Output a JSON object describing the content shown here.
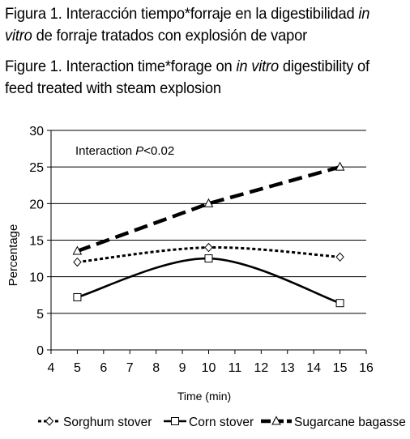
{
  "caption_es": {
    "l1_a": "Figura 1. Interacción tiempo*forraje en la digestibilidad ",
    "l1_i": "in",
    "l2_i": "vitro",
    "l2_b": " de forraje tratados con explosión de vapor"
  },
  "caption_en": {
    "l1_a": "Figure 1. Interaction time*forage on ",
    "l1_i": "in vitro",
    "l1_b": " digestibility of",
    "l2": "feed treated with steam explosion"
  },
  "chart_data": {
    "type": "line",
    "xlabel": "Time (min)",
    "ylabel": "Percentage",
    "xlim": [
      4,
      16
    ],
    "ylim": [
      0,
      30
    ],
    "xticks": [
      4,
      5,
      6,
      7,
      8,
      9,
      10,
      11,
      12,
      13,
      14,
      15,
      16
    ],
    "yticks": [
      0,
      5,
      10,
      15,
      20,
      25,
      30
    ],
    "grid": "horizontal",
    "annotation": {
      "prefix": "Interaction ",
      "italic": "P",
      "suffix": "<0.02"
    },
    "legend_position": "bottom",
    "x": [
      5,
      10,
      15
    ],
    "series": [
      {
        "name": "Sorghum stover",
        "values": [
          12,
          14,
          12.7
        ],
        "style": "dotted",
        "marker": "diamond"
      },
      {
        "name": "Corn stover",
        "values": [
          7.2,
          12.5,
          6.4
        ],
        "style": "solid",
        "marker": "square"
      },
      {
        "name": "Sugarcane bagasse",
        "values": [
          13.5,
          20,
          25
        ],
        "style": "dashed",
        "marker": "triangle"
      }
    ]
  }
}
